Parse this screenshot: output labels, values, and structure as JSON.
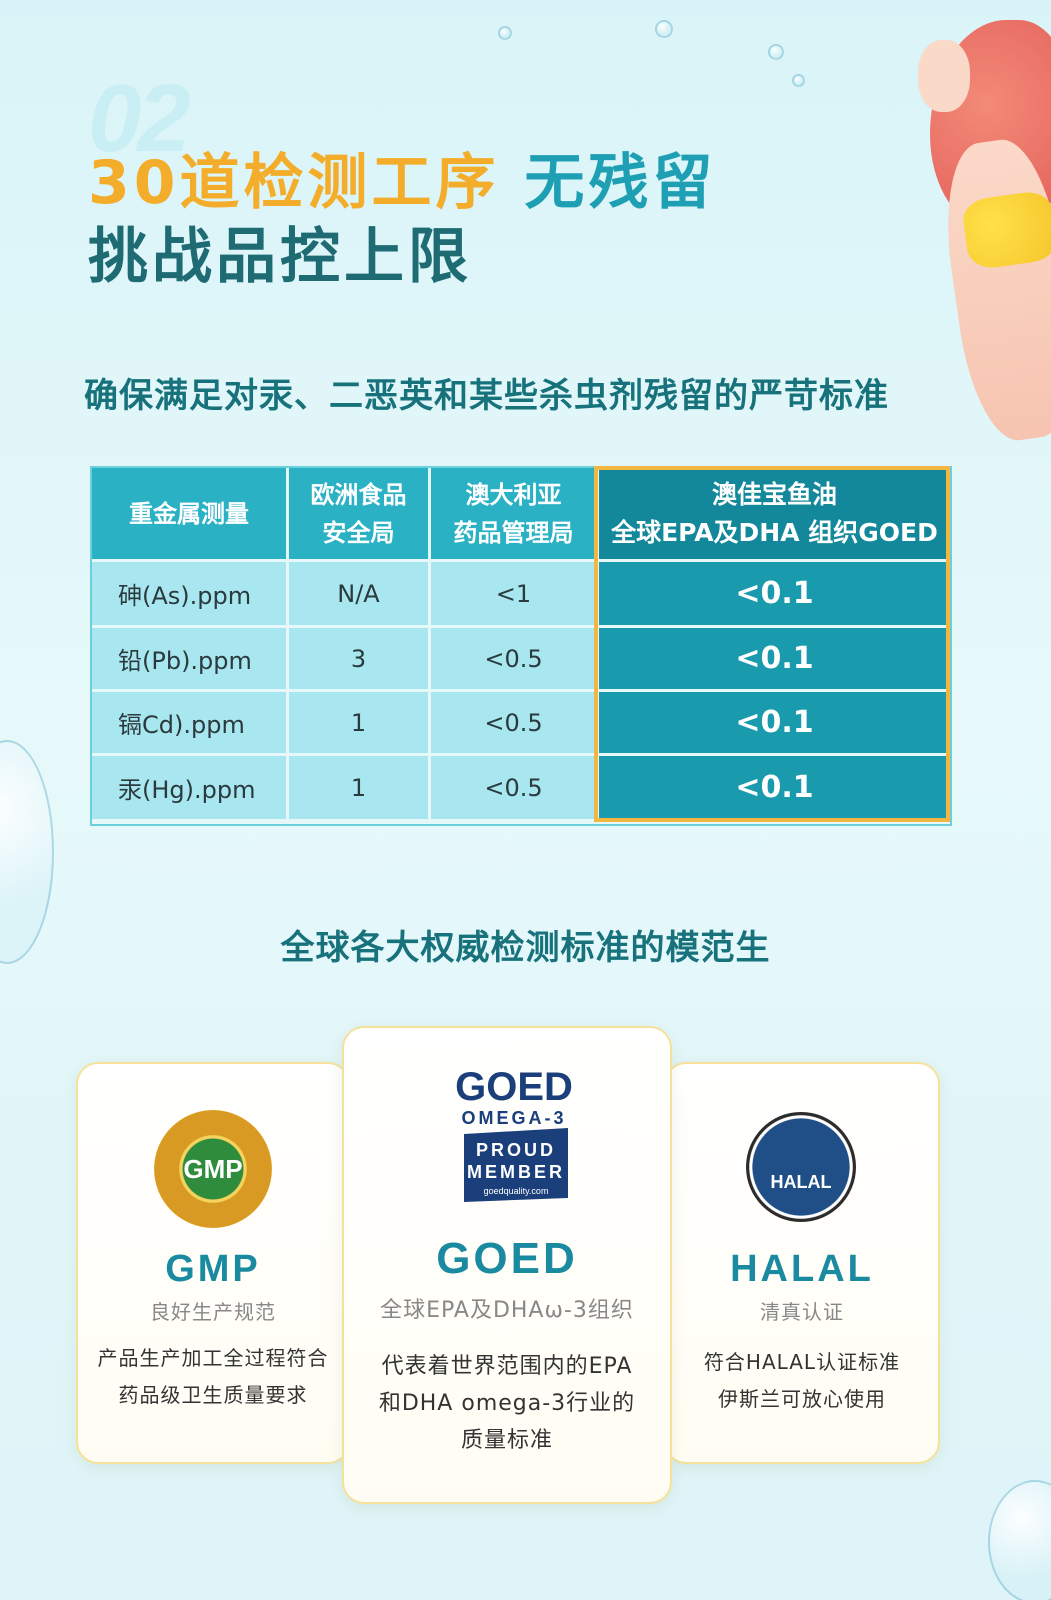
{
  "header": {
    "section_number": "02",
    "title_part1": "30道检测工序",
    "title_part2": "无残留",
    "title_line2": "挑战品控上限"
  },
  "subtitle": "确保满足对汞、二恶英和某些杀虫剂残留的严苛标准",
  "table": {
    "headers": [
      "重金属测量",
      "欧洲食品安全局",
      "澳大利亚药品管理局",
      "澳佳宝鱼油全球EPA及DHA 组织GOED"
    ],
    "headers_lines": [
      [
        "重金属测量"
      ],
      [
        "欧洲食品",
        "安全局"
      ],
      [
        "澳大利亚",
        "药品管理局"
      ],
      [
        "澳佳宝鱼油",
        "全球EPA及DHA 组织GOED"
      ]
    ],
    "rows": [
      [
        "砷(As).ppm",
        "N/A",
        "<1",
        "<0.1"
      ],
      [
        "铅(Pb).ppm",
        "3",
        "<0.5",
        "<0.1"
      ],
      [
        "镉Cd).ppm",
        "1",
        "<0.5",
        "<0.1"
      ],
      [
        "汞(Hg).ppm",
        "1",
        "<0.5",
        "<0.1"
      ]
    ]
  },
  "section2_title": "全球各大权威检测标准的模范生",
  "cards": [
    {
      "logo_text": "GMP",
      "name": "GMP",
      "sub": "良好生产规范",
      "desc_lines": [
        "产品生产加工全过程符合",
        "药品级卫生质量要求"
      ]
    },
    {
      "logo_text": "GOED",
      "name": "GOED",
      "sub": "全球EPA及DHAω-3组织",
      "desc_lines": [
        "代表着世界范围内的EPA",
        "和DHA omega-3行业的",
        "质量标准"
      ]
    },
    {
      "logo_text": "HALAL",
      "name": "HALAL",
      "sub": "清真认证",
      "desc_lines": [
        "符合HALAL认证标准",
        "伊斯兰可放心使用"
      ]
    }
  ],
  "colors": {
    "orange": "#f4ad2b",
    "teal": "#1f9fb4",
    "dark_teal": "#1e6b74",
    "highlight_border": "#f3b640"
  }
}
